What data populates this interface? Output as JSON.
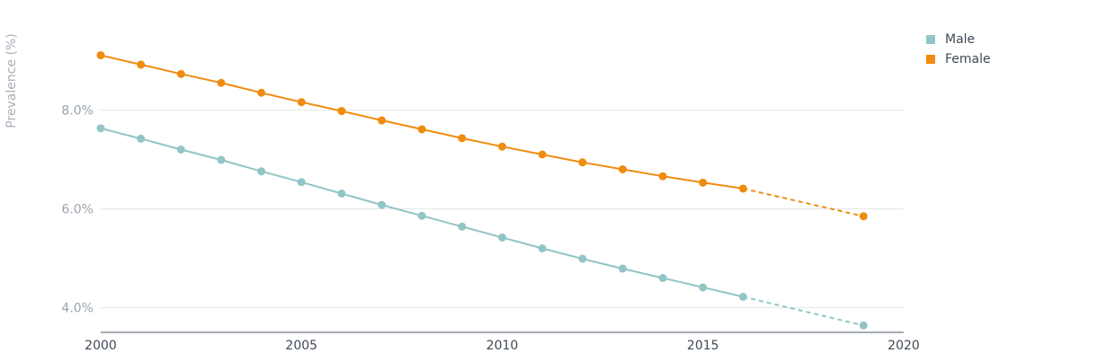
{
  "chart_data": {
    "type": "line",
    "title": "",
    "xlabel": "",
    "ylabel": "Prevalence (%)",
    "xlim": [
      2000,
      2020
    ],
    "ylim": [
      3.5,
      9.5
    ],
    "xticks": [
      "2000",
      "2005",
      "2010",
      "2015",
      "2020"
    ],
    "yticks": [
      "4.0%",
      "6.0%",
      "8.0%"
    ],
    "grid": "horizontal",
    "legend": "top-right",
    "projection_style": "dashed line for 2016-2019",
    "series": [
      {
        "name": "Male",
        "color": "#93c5c6",
        "x": [
          2000,
          2001,
          2002,
          2003,
          2004,
          2005,
          2006,
          2007,
          2008,
          2009,
          2010,
          2011,
          2012,
          2013,
          2014,
          2015,
          2016,
          2019
        ],
        "values": [
          7.63,
          7.42,
          7.2,
          6.99,
          6.76,
          6.54,
          6.31,
          6.08,
          5.86,
          5.64,
          5.42,
          5.2,
          4.99,
          4.79,
          4.6,
          4.41,
          4.22,
          3.64
        ]
      },
      {
        "name": "Female",
        "color": "#ef8c10",
        "x": [
          2000,
          2001,
          2002,
          2003,
          2004,
          2005,
          2006,
          2007,
          2008,
          2009,
          2010,
          2011,
          2012,
          2013,
          2014,
          2015,
          2016,
          2019
        ],
        "values": [
          9.11,
          8.92,
          8.73,
          8.55,
          8.35,
          8.16,
          7.98,
          7.79,
          7.61,
          7.43,
          7.26,
          7.1,
          6.94,
          6.8,
          6.66,
          6.53,
          6.41,
          5.85
        ]
      }
    ]
  }
}
